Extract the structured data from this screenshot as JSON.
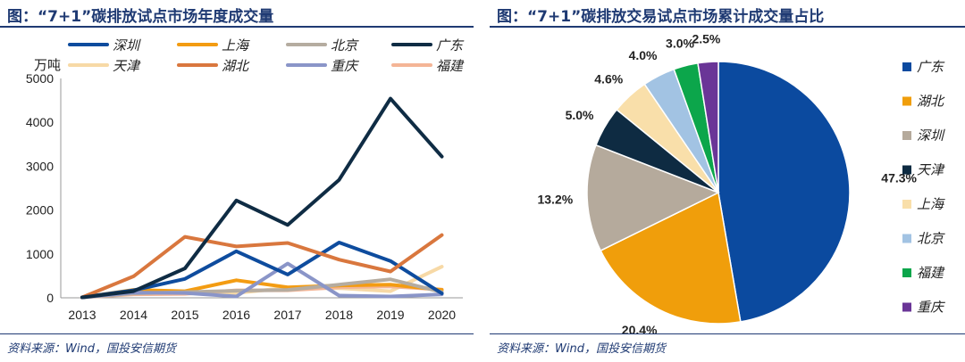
{
  "left": {
    "title": "图：“7+1”碳排放试点市场年度成交量",
    "source": "资料来源：Wind，国投安信期货"
  },
  "right": {
    "title": "图：“7+1”碳排放交易试点市场累计成交量占比",
    "source": "资料来源：Wind，国投安信期货"
  },
  "chart_data": [
    {
      "type": "line",
      "ylabel": "万吨",
      "ylim": [
        0,
        5000
      ],
      "yticks": [
        0,
        1000,
        2000,
        3000,
        4000,
        5000
      ],
      "x": [
        "2013",
        "2014",
        "2015",
        "2016",
        "2017",
        "2018",
        "2019",
        "2020"
      ],
      "grid": false,
      "legend_position": "top",
      "series": [
        {
          "name": "深圳",
          "color": "#0e4c9e",
          "values": [
            10,
            170,
            430,
            1060,
            530,
            1260,
            840,
            100
          ]
        },
        {
          "name": "上海",
          "color": "#f39c12",
          "values": [
            10,
            180,
            150,
            400,
            240,
            280,
            300,
            180
          ]
        },
        {
          "name": "北京",
          "color": "#b5aca0",
          "values": [
            10,
            100,
            130,
            160,
            180,
            300,
            420,
            130
          ]
        },
        {
          "name": "广东",
          "color": "#0f2c44",
          "values": [
            10,
            150,
            670,
            2220,
            1660,
            2690,
            4540,
            3220
          ]
        },
        {
          "name": "天津",
          "color": "#f7d9a6",
          "values": [
            10,
            130,
            120,
            110,
            230,
            220,
            150,
            710
          ]
        },
        {
          "name": "湖北",
          "color": "#d9773e",
          "values": [
            10,
            490,
            1390,
            1170,
            1250,
            870,
            600,
            1430
          ]
        },
        {
          "name": "重庆",
          "color": "#8a95c8",
          "values": [
            10,
            120,
            110,
            30,
            780,
            50,
            30,
            80
          ]
        },
        {
          "name": "福建",
          "color": "#f4b596",
          "values": [
            10,
            80,
            90,
            170,
            170,
            240,
            260,
            190
          ]
        }
      ]
    },
    {
      "type": "pie",
      "legend_position": "right",
      "slices": [
        {
          "name": "广东",
          "value": 47.3,
          "label": "47.3%",
          "color": "#0b4a9f"
        },
        {
          "name": "湖北",
          "value": 20.4,
          "label": "20.4%",
          "color": "#f09e0b"
        },
        {
          "name": "深圳",
          "value": 13.2,
          "label": "13.2%",
          "color": "#b5aa9c"
        },
        {
          "name": "天津",
          "value": 5.0,
          "label": "5.0%",
          "color": "#0e2b42"
        },
        {
          "name": "上海",
          "value": 4.6,
          "label": "4.6%",
          "color": "#f9dfaa"
        },
        {
          "name": "北京",
          "value": 4.0,
          "label": "4.0%",
          "color": "#a2c3e3"
        },
        {
          "name": "福建",
          "value": 3.0,
          "label": "3.0%",
          "color": "#0ca64b"
        },
        {
          "name": "重庆",
          "value": 2.5,
          "label": "2.5%",
          "color": "#6a3597"
        }
      ]
    }
  ]
}
